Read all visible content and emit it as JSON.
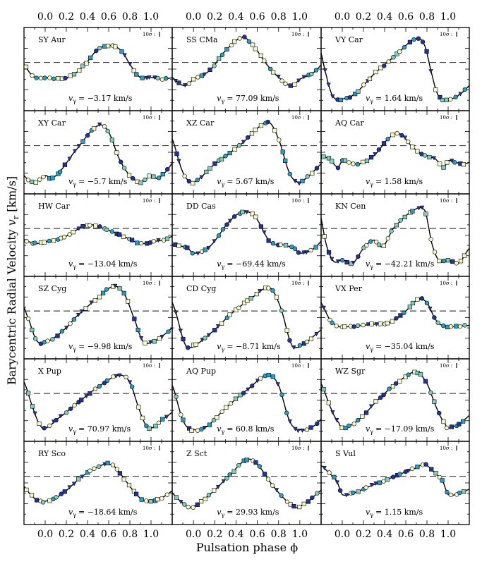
{
  "figure": {
    "xlabel": "Pulsation phase ϕ",
    "ylabel": "Barycentric Radial Velocity v_r [km/s]",
    "ylabel_main": "Barycentric Radial Velocity ",
    "ylabel_var": "v",
    "ylabel_sub": "r",
    "ylabel_unit": " [km/s]",
    "scale_note": "10σ :",
    "gamma_symbol": "v",
    "gamma_sub": "γ",
    "xticks": [
      "0.0",
      "0.2",
      "0.4",
      "0.6",
      "0.8",
      "1.0"
    ]
  },
  "colors": {
    "light": "#f2f8c8",
    "mid": "#7fcdbb",
    "teal": "#2a9fc3",
    "dark": "#22349a",
    "curve": "#000000",
    "dashed": "#444444"
  },
  "chart_data": [
    {
      "type": "scatter",
      "star": "SY Aur",
      "gamma": "vγ = −3.17 km/s",
      "gamma_value": "= −3.17 km/s",
      "phases": [
        -0.2,
        1.2
      ]
    },
    {
      "type": "scatter",
      "star": "SS CMa",
      "gamma": "vγ = 77.09 km/s",
      "gamma_value": "= 77.09 km/s",
      "phases": [
        -0.2,
        1.2
      ]
    },
    {
      "type": "scatter",
      "star": "VY Car",
      "gamma": "vγ = 1.64 km/s",
      "gamma_value": "= 1.64 km/s",
      "phases": [
        -0.2,
        1.2
      ]
    },
    {
      "type": "scatter",
      "star": "XY Car",
      "gamma": "vγ = −5.7 km/s",
      "gamma_value": "= −5.7 km/s",
      "phases": [
        -0.2,
        1.2
      ]
    },
    {
      "type": "scatter",
      "star": "XZ Car",
      "gamma": "vγ = 5.67 km/s",
      "gamma_value": "= 5.67 km/s",
      "phases": [
        -0.2,
        1.2
      ]
    },
    {
      "type": "scatter",
      "star": "AQ Car",
      "gamma": "vγ = 1.58 km/s",
      "gamma_value": "= 1.58 km/s",
      "phases": [
        -0.2,
        1.2
      ]
    },
    {
      "type": "scatter",
      "star": "HW Car",
      "gamma": "vγ = −13.04 km/s",
      "gamma_value": "= −13.04 km/s",
      "phases": [
        -0.2,
        1.2
      ]
    },
    {
      "type": "scatter",
      "star": "DD Cas",
      "gamma": "vγ = −69.44 km/s",
      "gamma_value": "= −69.44 km/s",
      "phases": [
        -0.2,
        1.2
      ]
    },
    {
      "type": "scatter",
      "star": "KN Cen",
      "gamma": "vγ = −42.21 km/s",
      "gamma_value": "= −42.21 km/s",
      "phases": [
        -0.2,
        1.2
      ]
    },
    {
      "type": "scatter",
      "star": "SZ Cyg",
      "gamma": "vγ = −9.98 km/s",
      "gamma_value": "= −9.98 km/s",
      "phases": [
        -0.2,
        1.2
      ]
    },
    {
      "type": "scatter",
      "star": "CD Cyg",
      "gamma": "vγ = −8.71 km/s",
      "gamma_value": "= −8.71 km/s",
      "phases": [
        -0.2,
        1.2
      ]
    },
    {
      "type": "scatter",
      "star": "VX Per",
      "gamma": "vγ = −35.04 km/s",
      "gamma_value": "= −35.04 km/s",
      "phases": [
        -0.2,
        1.2
      ]
    },
    {
      "type": "scatter",
      "star": "X Pup",
      "gamma": "vγ = 70.97 km/s",
      "gamma_value": "= 70.97 km/s",
      "phases": [
        -0.2,
        1.2
      ]
    },
    {
      "type": "scatter",
      "star": "AQ Pup",
      "gamma": "vγ = 60.8 km/s",
      "gamma_value": "= 60.8 km/s",
      "phases": [
        -0.2,
        1.2
      ]
    },
    {
      "type": "scatter",
      "star": "WZ Sgr",
      "gamma": "vγ = −17.09 km/s",
      "gamma_value": "= −17.09 km/s",
      "phases": [
        -0.2,
        1.2
      ]
    },
    {
      "type": "scatter",
      "star": "RY Sco",
      "gamma": "vγ = −18.64 km/s",
      "gamma_value": "= −18.64 km/s",
      "phases": [
        -0.2,
        1.2
      ]
    },
    {
      "type": "scatter",
      "star": "Z Sct",
      "gamma": "vγ = 29.93 km/s",
      "gamma_value": "= 29.93 km/s",
      "phases": [
        -0.2,
        1.2
      ]
    },
    {
      "type": "scatter",
      "star": "S Vul",
      "gamma": "vγ = 1.15 km/s",
      "gamma_value": "= 1.15 km/s",
      "phases": [
        -0.2,
        1.2
      ]
    }
  ]
}
